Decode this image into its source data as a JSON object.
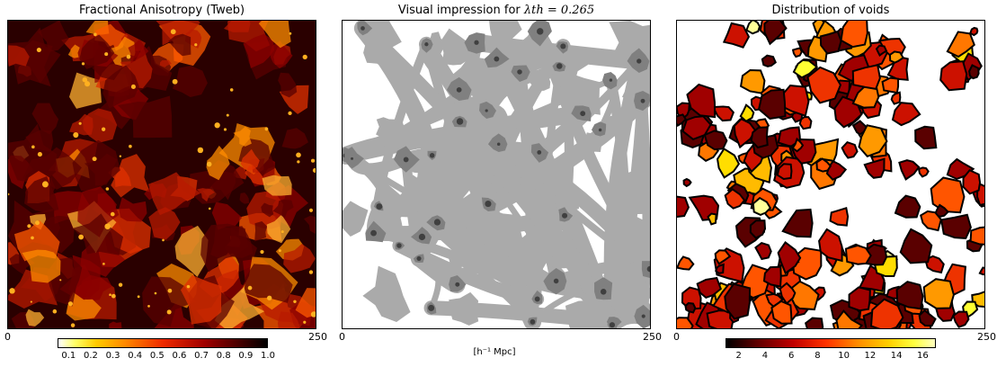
{
  "chart_data": [
    {
      "type": "heatmap",
      "title": "Fractional Anisotropy (Tweb)",
      "x_ticks": [
        "0",
        "250"
      ],
      "colorbar": {
        "ticks": [
          "0.1",
          "0.2",
          "0.3",
          "0.4",
          "0.5",
          "0.6",
          "0.7",
          "0.8",
          "0.9",
          "1.0"
        ],
        "range": [
          0.05,
          1.0
        ],
        "colormap": "hot (reversed)"
      }
    },
    {
      "type": "heatmap",
      "title_prefix": "Visual impression for ",
      "title_math": "λth = 0.265",
      "x_ticks": [
        "0",
        "250"
      ],
      "xlabel": "[h⁻¹ Mpc]",
      "colormap": "grayscale, 4 levels"
    },
    {
      "type": "heatmap",
      "title": "Distribution of voids",
      "x_ticks": [
        "0",
        "250"
      ],
      "colorbar": {
        "ticks": [
          "2",
          "4",
          "6",
          "8",
          "10",
          "12",
          "14",
          "16"
        ],
        "range": [
          1,
          17
        ],
        "colormap": "hot"
      }
    }
  ],
  "colors": {
    "fa_bg": "#2a0000",
    "web_white": "#ffffff",
    "web_light": "#aaaaaa",
    "web_mid": "#808080",
    "web_dark": "#404040",
    "void_outline": "#000000"
  }
}
